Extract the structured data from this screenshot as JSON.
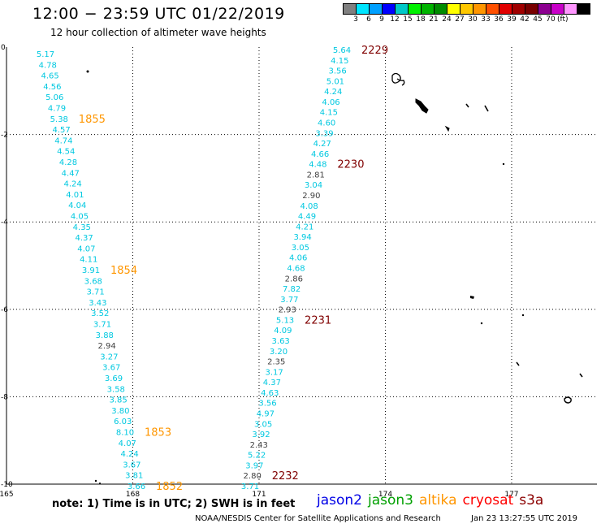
{
  "title": "12:00 − 23:59 UTC 01/22/2019",
  "subtitle": "12 hour collection of altimeter wave heights",
  "legend": {
    "colors": [
      "#808080",
      "#00e5ff",
      "#00a0ff",
      "#0000ff",
      "#00c8c8",
      "#00f000",
      "#00b400",
      "#008c00",
      "#ffff00",
      "#ffc800",
      "#ff9600",
      "#ff5000",
      "#e10000",
      "#a00000",
      "#780000",
      "#8c0090",
      "#c800c8",
      "#ff96ff",
      "#000000"
    ],
    "values": [
      "3",
      "6",
      "9",
      "12",
      "15",
      "18",
      "21",
      "24",
      "27",
      "30",
      "33",
      "36",
      "39",
      "42",
      "45",
      "70"
    ],
    "unit": "(ft)"
  },
  "axes": {
    "lat_labels": [
      "0",
      "-2",
      "-4",
      "-6",
      "-8",
      "-10"
    ],
    "lon_labels": [
      "165",
      "168",
      "171",
      "174",
      "177"
    ]
  },
  "tracks": [
    {
      "id": "left",
      "readings": [
        "5.17",
        "4.78",
        "4.65",
        "4.56",
        "5.06",
        "4.79",
        "5.38",
        "4.57",
        "4.74",
        "4.54",
        "4.28",
        "4.47",
        "4.24",
        "4.01",
        "4.04",
        "4.05",
        "4.35",
        "4.37",
        "4.07",
        "4.11",
        "3.91",
        "3.68",
        "3.71",
        "3.43",
        "3.52",
        "3.71",
        "3.88",
        "2.94",
        "3.27",
        "3.67",
        "3.69",
        "3.58",
        "3.85",
        "3.80",
        "6.03",
        "8.10",
        "4.07",
        "4.24",
        "3.67",
        "3.81",
        "3.66"
      ],
      "grey_indices": [
        27
      ],
      "times": [
        {
          "label": "1855",
          "at": 6
        },
        {
          "label": "1854",
          "at": 20
        },
        {
          "label": "1853",
          "at": 35
        },
        {
          "label": "1852",
          "at": 40
        }
      ],
      "time_color": "#ff9600"
    },
    {
      "id": "right",
      "readings": [
        "5.64",
        "4.15",
        "3.56",
        "5.01",
        "4.24",
        "4.06",
        "4.15",
        "4.60",
        "3.39",
        "4.27",
        "4.66",
        "4.48",
        "2.81",
        "3.04",
        "2.90",
        "4.08",
        "4.49",
        "4.21",
        "3.94",
        "3.05",
        "4.06",
        "4.68",
        "2.86",
        "7.82",
        "3.77",
        "2.93",
        "5.13",
        "4.09",
        "3.63",
        "3.20",
        "2.35",
        "3.17",
        "4.37",
        "4.63",
        "3.56",
        "4.97",
        "3.05",
        "3.92",
        "2.43",
        "5.22",
        "3.97",
        "2.80",
        "3.71"
      ],
      "grey_indices": [
        12,
        14,
        22,
        25,
        30,
        38,
        41
      ],
      "times": [
        {
          "label": "2229",
          "at": 0
        },
        {
          "label": "2230",
          "at": 11
        },
        {
          "label": "2231",
          "at": 26
        },
        {
          "label": "2232",
          "at": 41
        }
      ],
      "time_color": "#800000"
    }
  ],
  "note": "note:  1) Time is in UTC;  2) SWH is in feet",
  "satellites": [
    {
      "name": "jason2",
      "color": "#0000e6"
    },
    {
      "name": "jason3",
      "color": "#00a000"
    },
    {
      "name": "altika",
      "color": "#ff9600"
    },
    {
      "name": "cryosat",
      "color": "#ff0000"
    },
    {
      "name": "s3a",
      "color": "#8b0000"
    }
  ],
  "credit": "NOAA/NESDIS Center for Satellite Applications and Research",
  "timestamp": "Jan 23 13:27:55 UTC 2019"
}
